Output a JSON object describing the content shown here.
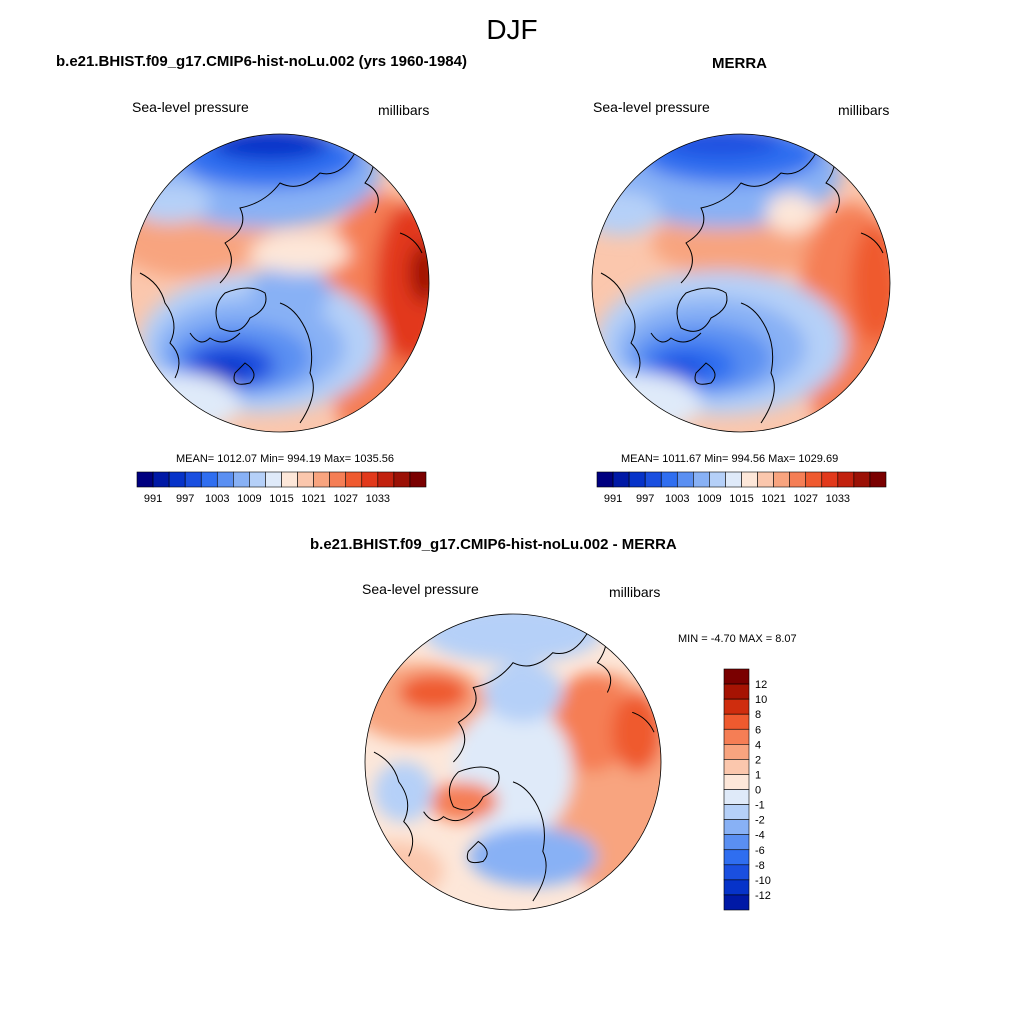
{
  "page_title": "DJF",
  "panels": [
    {
      "title": "b.e21.BHIST.f09_g17.CMIP6-hist-noLu.002 (yrs 1960-1984)",
      "left_label": "Sea-level pressure",
      "right_label": "millibars",
      "stats": "MEAN= 1012.07  Min= 994.19  Max= 1035.56"
    },
    {
      "title": "MERRA",
      "left_label": "Sea-level pressure",
      "right_label": "millibars",
      "stats": "MEAN= 1011.67  Min= 994.56  Max= 1029.69"
    },
    {
      "title": "b.e21.BHIST.f09_g17.CMIP6-hist-noLu.002 - MERRA",
      "left_label": "Sea-level pressure",
      "right_label": "millibars",
      "stats": "MIN =  -4.70 MAX =   8.07"
    }
  ],
  "colorbar_abs": {
    "tick_labels": [
      "991",
      "997",
      "1003",
      "1009",
      "1015",
      "1021",
      "1027",
      "1033"
    ],
    "colors": [
      "#000080",
      "#0019a6",
      "#0633c9",
      "#1a4fe0",
      "#2f6ef0",
      "#5a8ff2",
      "#88b1f5",
      "#b5d0f8",
      "#dfeaf9",
      "#fde7d9",
      "#fbc7ad",
      "#f8a47f",
      "#f57e55",
      "#ef5a2f",
      "#e2391b",
      "#c2210e",
      "#9b1106",
      "#7a0000"
    ]
  },
  "colorbar_diff": {
    "tick_labels": [
      "12",
      "10",
      "8",
      "6",
      "4",
      "2",
      "1",
      "0",
      "-1",
      "-2",
      "-4",
      "-6",
      "-8",
      "-10",
      "-12"
    ],
    "colors": [
      "#7a0000",
      "#a61303",
      "#cf2d0e",
      "#ef5a2f",
      "#f57e55",
      "#f8a47f",
      "#fbc7ad",
      "#fde7d9",
      "#dfeaf9",
      "#b5d0f8",
      "#88b1f5",
      "#5a8ff2",
      "#2f6ef0",
      "#1a4fe0",
      "#0633c9",
      "#0019a6"
    ]
  }
}
